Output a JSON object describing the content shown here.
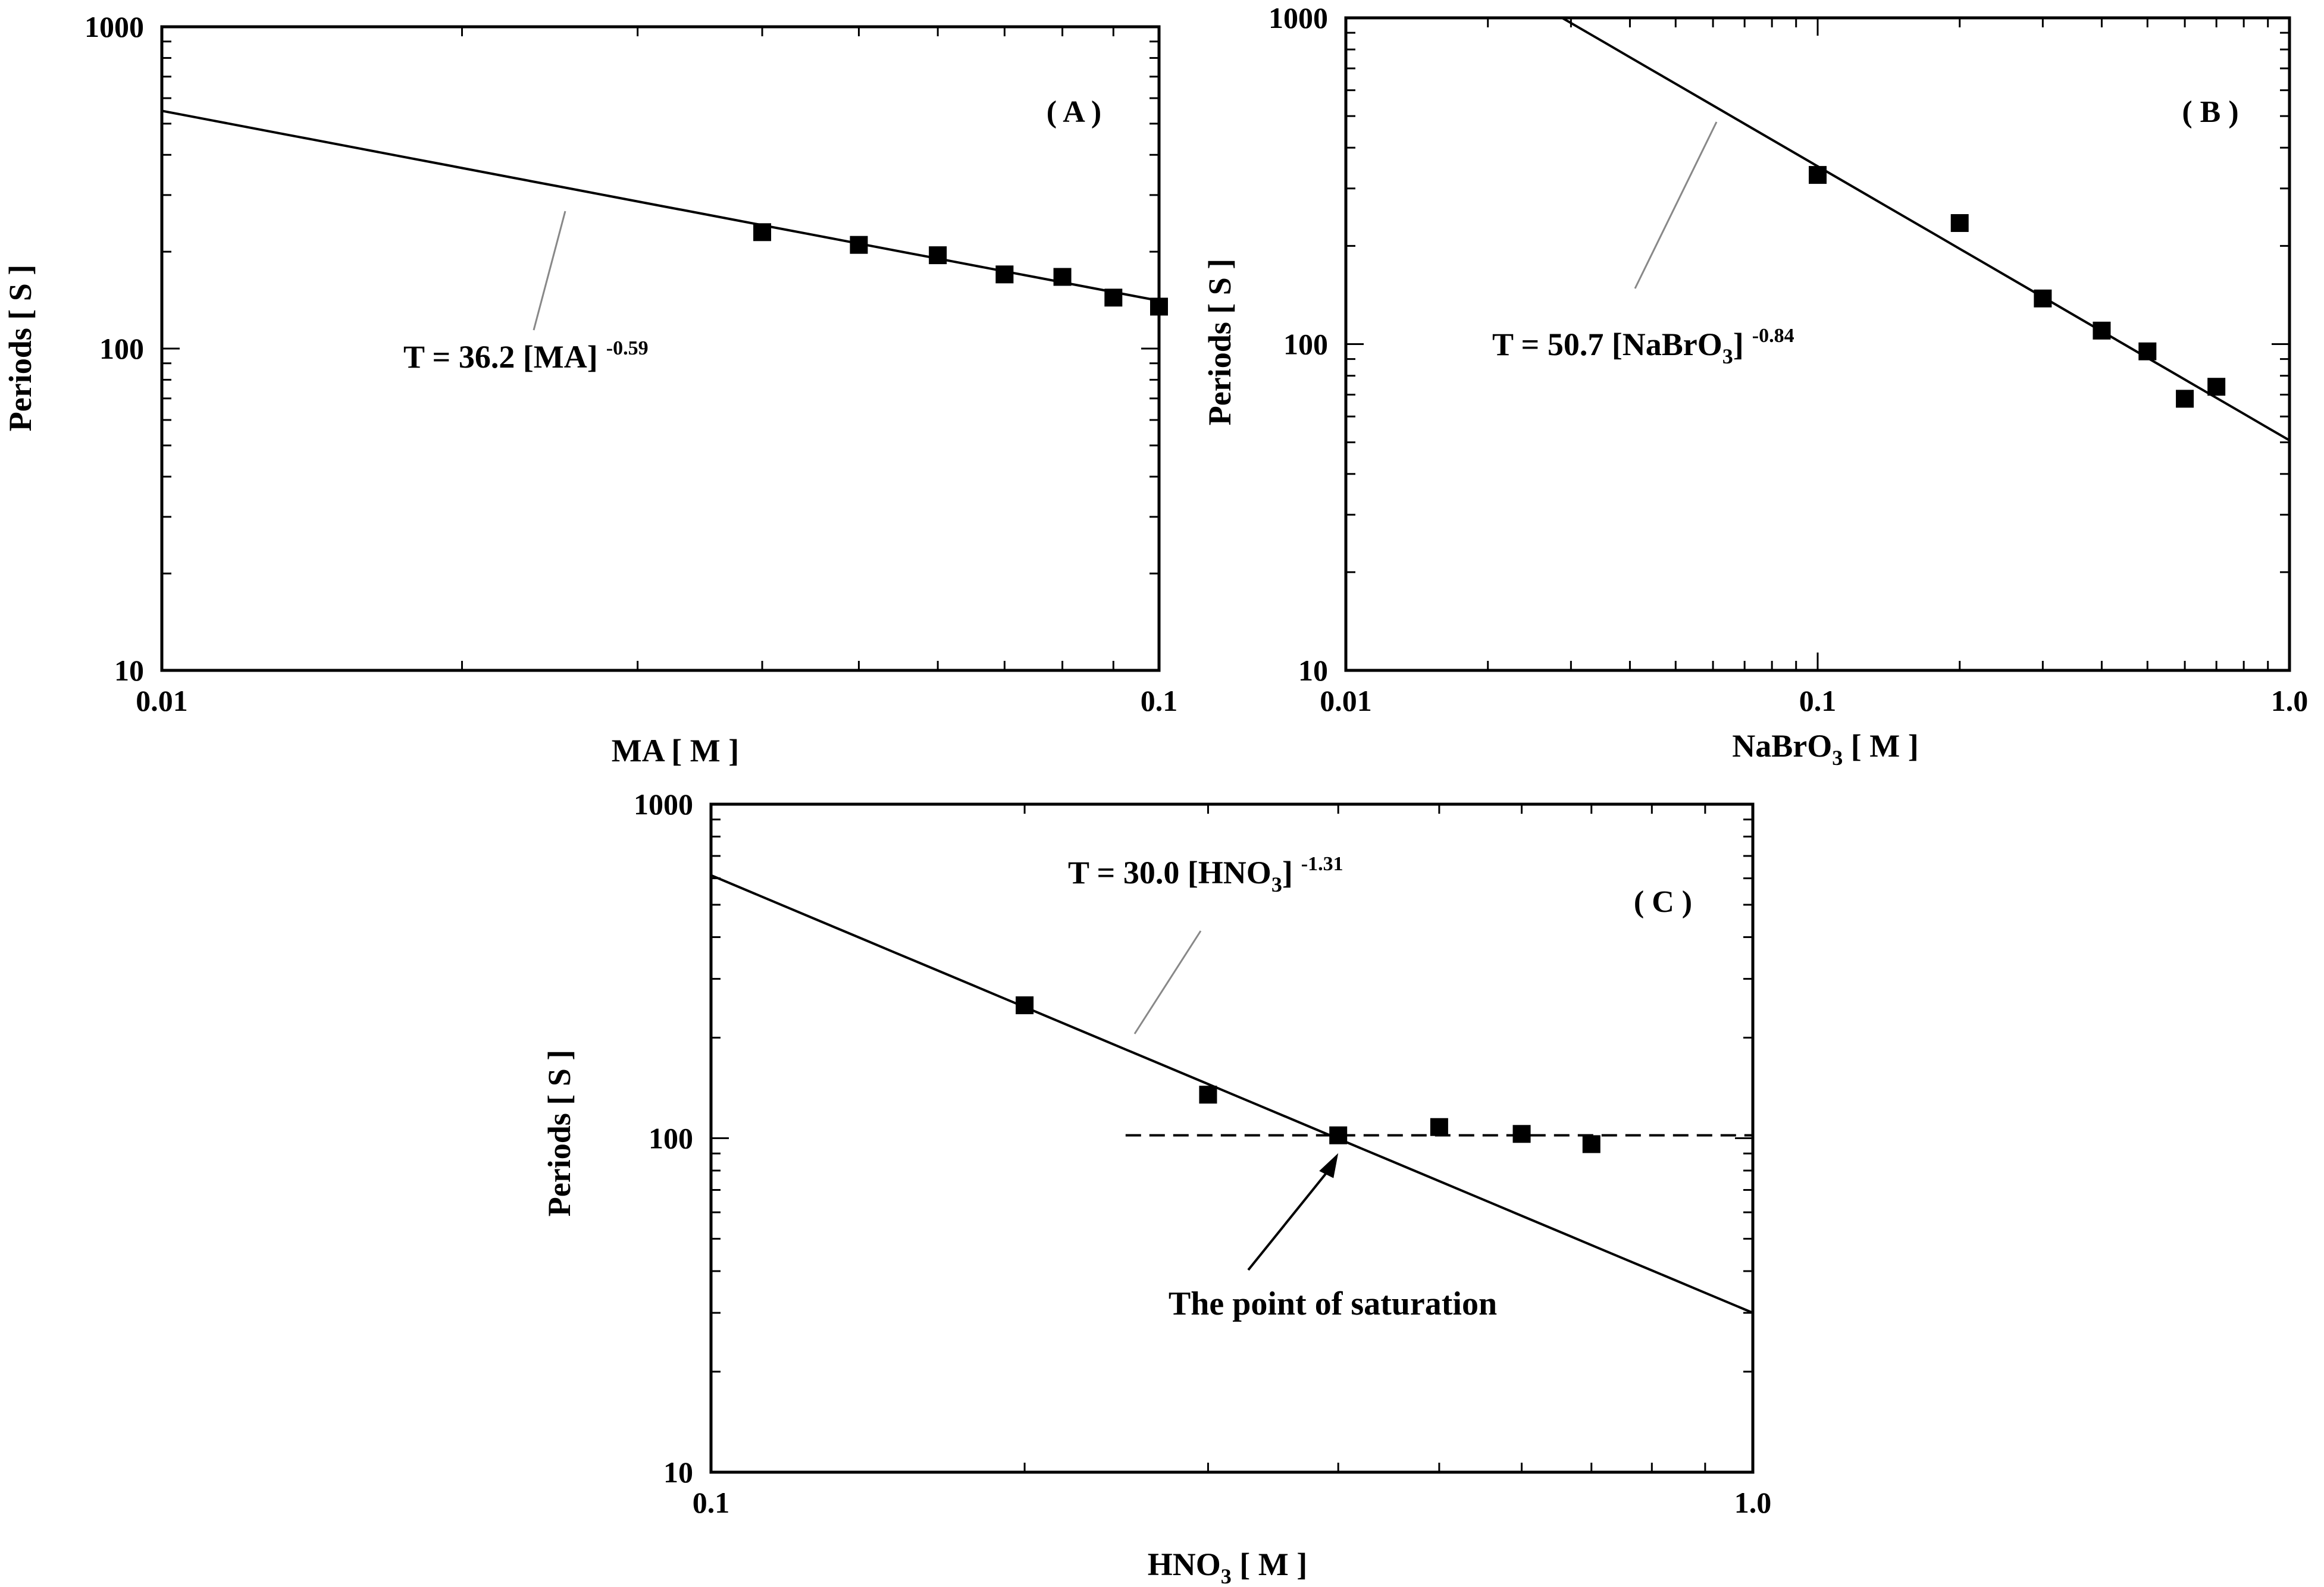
{
  "chart_data": [
    {
      "id": "A",
      "type": "scatter",
      "x_scale": "log",
      "y_scale": "log",
      "xlim": [
        0.01,
        0.1
      ],
      "ylim": [
        10,
        1000
      ],
      "x_ticks": [
        "0.01",
        "0.1"
      ],
      "y_ticks": [
        "10",
        "100",
        "1000"
      ],
      "xlabel": "MA [ M ]",
      "ylabel": "Periods [ S ]",
      "panel_label": "( A )",
      "equation": {
        "base": "T = 36.2 [MA]",
        "sub": "",
        "tail": "",
        "exponent": "-0.59"
      },
      "fit": {
        "coef": 36.2,
        "exponent": -0.59
      },
      "points": [
        {
          "x": 0.04,
          "y": 230
        },
        {
          "x": 0.05,
          "y": 210
        },
        {
          "x": 0.06,
          "y": 195
        },
        {
          "x": 0.07,
          "y": 170
        },
        {
          "x": 0.08,
          "y": 167
        },
        {
          "x": 0.09,
          "y": 144
        },
        {
          "x": 0.1,
          "y": 135
        }
      ]
    },
    {
      "id": "B",
      "type": "scatter",
      "x_scale": "log",
      "y_scale": "log",
      "xlim": [
        0.01,
        1.0
      ],
      "ylim": [
        10,
        1000
      ],
      "x_ticks": [
        "0.01",
        "0.1",
        "1.0"
      ],
      "y_ticks": [
        "10",
        "100",
        "1000"
      ],
      "xlabel": "NaBrO",
      "xlabel_sub": "3",
      "xlabel_tail": " [ M ]",
      "ylabel": "Periods [ S ]",
      "panel_label": "( B )",
      "equation": {
        "base": "T = 50.7 [NaBrO",
        "sub": "3",
        "tail": "]",
        "exponent": "-0.84"
      },
      "fit": {
        "coef": 50.7,
        "exponent": -0.84
      },
      "points": [
        {
          "x": 0.1,
          "y": 330
        },
        {
          "x": 0.2,
          "y": 235
        },
        {
          "x": 0.3,
          "y": 138
        },
        {
          "x": 0.4,
          "y": 110
        },
        {
          "x": 0.5,
          "y": 95
        },
        {
          "x": 0.6,
          "y": 68
        },
        {
          "x": 0.7,
          "y": 74
        }
      ]
    },
    {
      "id": "C",
      "type": "scatter",
      "x_scale": "log",
      "y_scale": "log",
      "xlim": [
        0.1,
        1.0
      ],
      "ylim": [
        10,
        1000
      ],
      "x_ticks": [
        "0.1",
        "1.0"
      ],
      "y_ticks": [
        "10",
        "100",
        "1000"
      ],
      "xlabel": "HNO",
      "xlabel_sub": "3",
      "xlabel_tail": " [ M ]",
      "ylabel": "Periods [ S ]",
      "panel_label": "( C )",
      "equation": {
        "base": "T = 30.0 [HNO",
        "sub": "3",
        "tail": "]",
        "exponent": "-1.31"
      },
      "fit": {
        "coef": 30.0,
        "exponent": -1.31
      },
      "saturation_level": 102,
      "saturation_start": 0.25,
      "saturation_point": {
        "x": 0.4,
        "y": 102
      },
      "annotation": "The point of saturation",
      "points": [
        {
          "x": 0.2,
          "y": 250
        },
        {
          "x": 0.3,
          "y": 135
        },
        {
          "x": 0.4,
          "y": 102
        },
        {
          "x": 0.5,
          "y": 108
        },
        {
          "x": 0.6,
          "y": 103
        },
        {
          "x": 0.7,
          "y": 96
        }
      ]
    }
  ]
}
